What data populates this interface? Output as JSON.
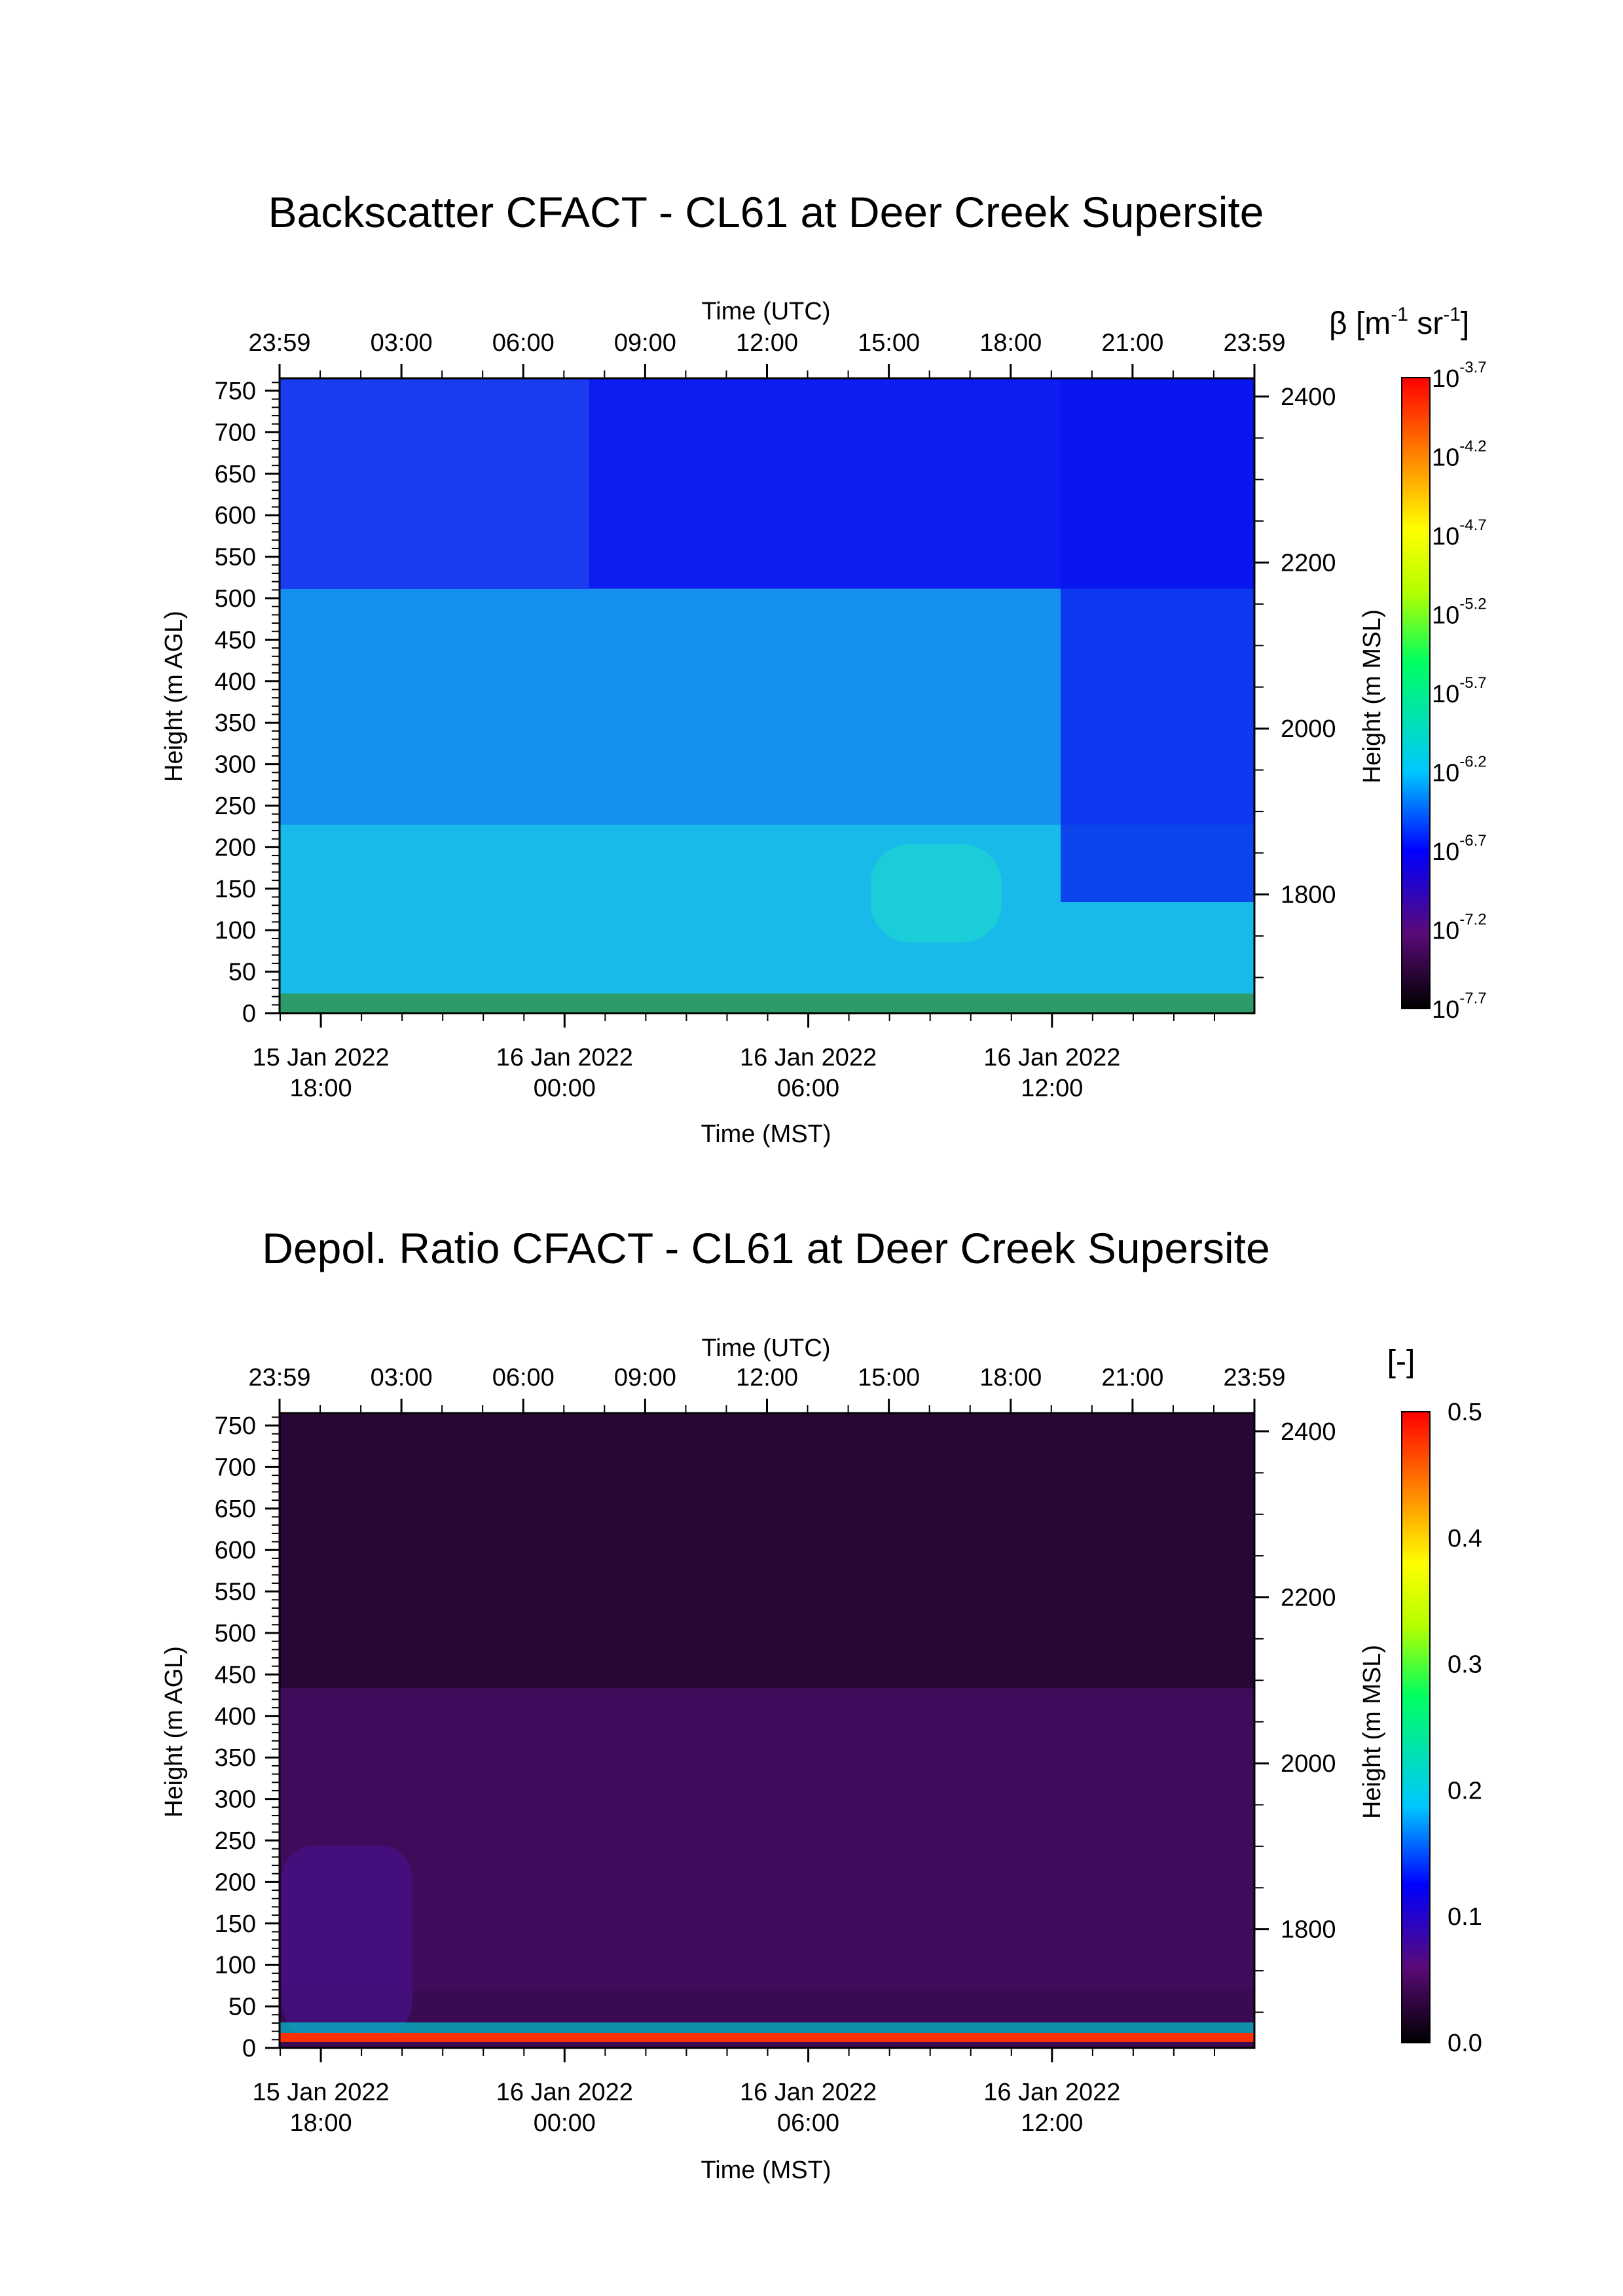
{
  "chart_data": [
    {
      "type": "heatmap",
      "title": "Backscatter CFACT - CL61 at Deer Creek Supersite",
      "x_top_label": "Time (UTC)",
      "x_top_ticks": [
        "23:59",
        "03:00",
        "06:00",
        "09:00",
        "12:00",
        "15:00",
        "18:00",
        "21:00",
        "23:59"
      ],
      "x_bottom_label": "Time (MST)",
      "x_bottom_ticks": [
        {
          "date": "15 Jan 2022",
          "time": "18:00"
        },
        {
          "date": "16 Jan 2022",
          "time": "00:00"
        },
        {
          "date": "16 Jan 2022",
          "time": "06:00"
        },
        {
          "date": "16 Jan 2022",
          "time": "12:00"
        }
      ],
      "x_range_mst": [
        "15 Jan 2022 16:59",
        "16 Jan 2022 16:59"
      ],
      "y_left_label": "Height (m AGL)",
      "y_left_ticks": [
        0,
        50,
        100,
        150,
        200,
        250,
        300,
        350,
        400,
        450,
        500,
        550,
        600,
        650,
        700,
        750
      ],
      "y_left_range": [
        0,
        765
      ],
      "y_right_label": "Height (m MSL)",
      "y_right_ticks": [
        1800,
        2000,
        2200,
        2400
      ],
      "y_right_range": [
        1657,
        2422
      ],
      "colorbar": {
        "label": "β [m-1 sr-1]",
        "label_parts": [
          "β [m",
          "-1",
          " sr",
          "-1",
          "]"
        ],
        "scale": "log",
        "range": [
          -7.7,
          -3.7
        ],
        "base": "10",
        "tick_exponents": [
          "-7.7",
          "-7.2",
          "-6.7",
          "-6.2",
          "-5.7",
          "-5.2",
          "-4.7",
          "-4.2",
          "-3.7"
        ],
        "colormap": [
          "#000000",
          "#5a0a78",
          "#0000ff",
          "#00c8ff",
          "#00ff60",
          "#b4ff00",
          "#ffff00",
          "#ff8000",
          "#ff0000"
        ]
      }
    },
    {
      "type": "heatmap",
      "title": "Depol. Ratio CFACT - CL61 at Deer Creek Supersite",
      "x_top_label": "Time (UTC)",
      "x_top_ticks": [
        "23:59",
        "03:00",
        "06:00",
        "09:00",
        "12:00",
        "15:00",
        "18:00",
        "21:00",
        "23:59"
      ],
      "x_bottom_label": "Time (MST)",
      "x_bottom_ticks": [
        {
          "date": "15 Jan 2022",
          "time": "18:00"
        },
        {
          "date": "16 Jan 2022",
          "time": "00:00"
        },
        {
          "date": "16 Jan 2022",
          "time": "06:00"
        },
        {
          "date": "16 Jan 2022",
          "time": "12:00"
        }
      ],
      "x_range_mst": [
        "15 Jan 2022 16:59",
        "16 Jan 2022 16:59"
      ],
      "y_left_label": "Height (m AGL)",
      "y_left_ticks": [
        0,
        50,
        100,
        150,
        200,
        250,
        300,
        350,
        400,
        450,
        500,
        550,
        600,
        650,
        700,
        750
      ],
      "y_left_range": [
        0,
        765
      ],
      "y_right_label": "Height (m MSL)",
      "y_right_ticks": [
        1800,
        2000,
        2200,
        2400
      ],
      "y_right_range": [
        1657,
        2422
      ],
      "colorbar": {
        "label": "[-]",
        "scale": "linear",
        "range": [
          0.0,
          0.5
        ],
        "tick_labels": [
          "0.0",
          "0.1",
          "0.2",
          "0.3",
          "0.4",
          "0.5"
        ],
        "colormap": [
          "#000000",
          "#5a0a78",
          "#0000ff",
          "#00c8ff",
          "#00ff60",
          "#b4ff00",
          "#ffff00",
          "#ff8000",
          "#ff0000"
        ]
      }
    }
  ]
}
